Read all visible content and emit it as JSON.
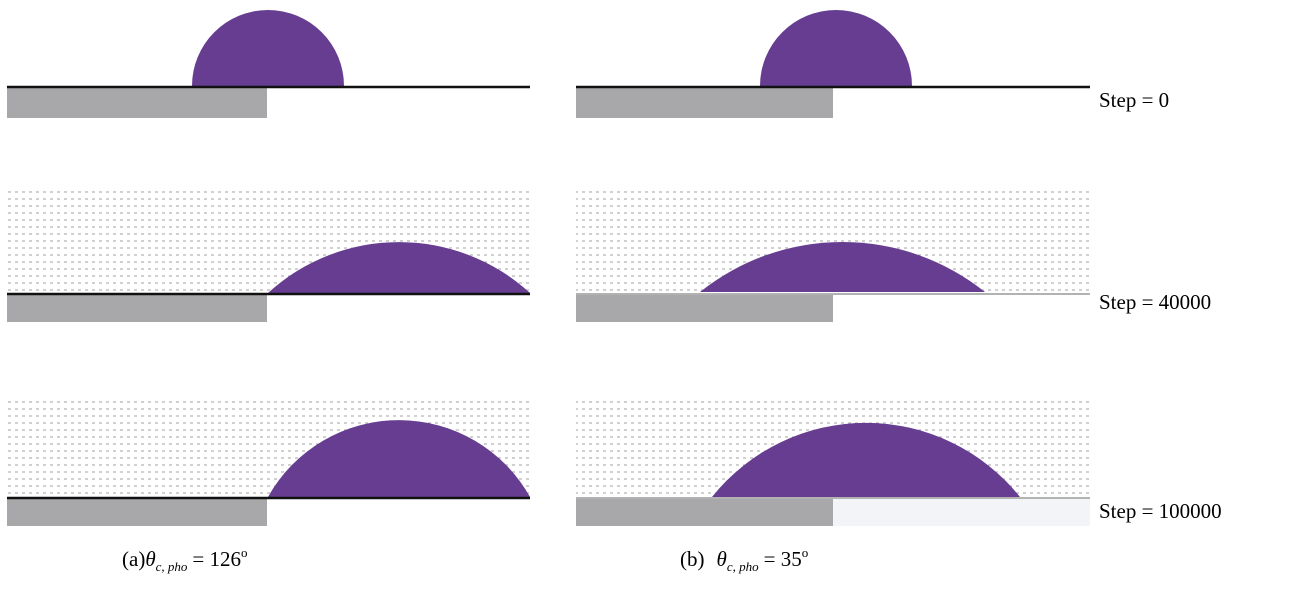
{
  "steps": [
    "Step = 0",
    "Step = 40000",
    "Step = 100000"
  ],
  "captions": [
    {
      "label": "(a)",
      "symbol": "θ",
      "subscript": "c, pho",
      "value": "= 126",
      "degree": "o"
    },
    {
      "label": "(b)",
      "symbol": "θ",
      "subscript": "c, pho",
      "value": "= 35",
      "degree": "o"
    }
  ]
}
